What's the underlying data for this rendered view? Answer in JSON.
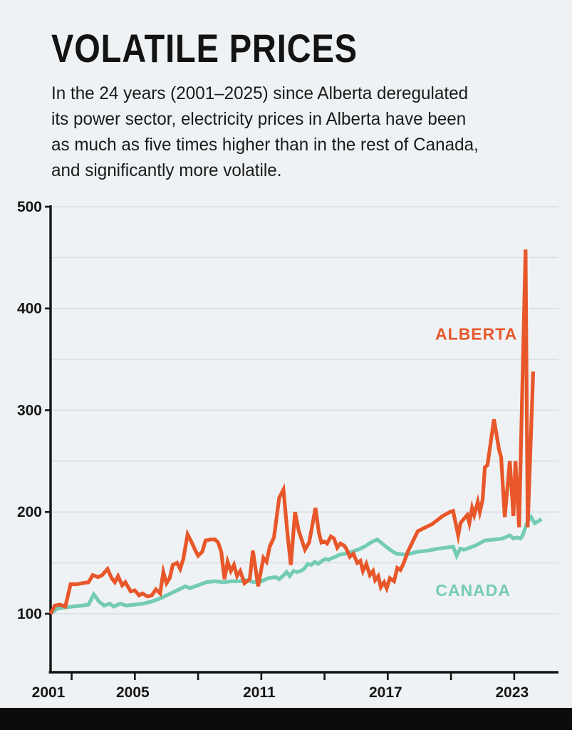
{
  "header": {
    "title": "VOLATILE PRICES",
    "subtitle_lines": [
      "In the 24 years (2001–2025) since Alberta deregulated",
      "its power sector, electricity prices in Alberta have been",
      "as much as five times higher than in the rest of Canada,",
      "and significantly more volatile."
    ]
  },
  "colors": {
    "background": "#EFF2F4",
    "alberta": "#E8572A",
    "canada": "#74CBB6",
    "gridline": "#D8DCDF",
    "axis": "#141414",
    "tick_label": "#161616",
    "footer_bar": "#0C0C0C"
  },
  "chart_data": {
    "type": "line",
    "title": "VOLATILE PRICES",
    "subtitle": "In the 24 years (2001–2025) since Alberta deregulated its power sector, electricity prices in Alberta have been as much as five times higher than in the rest of Canada, and significantly more volatile.",
    "grid": true,
    "legend_position": "inline-labels",
    "x_axis": {
      "min": 2001,
      "max": 2025.1,
      "tick_years": [
        2002,
        2005,
        2008,
        2011,
        2014,
        2017,
        2020,
        2023
      ],
      "label_years": [
        2001,
        2005,
        2011,
        2017,
        2023
      ],
      "labels": [
        "2001",
        "2005",
        "2011",
        "2017",
        "2023"
      ]
    },
    "y_axis": {
      "min": 42.5,
      "max": 500,
      "gridlines": [
        100,
        150,
        200,
        250,
        300,
        350,
        400,
        450,
        500
      ],
      "labeled_ticks": [
        100,
        200,
        300,
        400,
        500
      ],
      "labels": [
        "100",
        "200",
        "300",
        "400",
        "500"
      ]
    },
    "series": [
      {
        "name": "CANADA",
        "color": "#74CBB6",
        "label": {
          "text": "CANADA",
          "x": 2021.05,
          "y": 123
        },
        "points": [
          [
            2001.0,
            100
          ],
          [
            2001.3,
            105
          ],
          [
            2001.6,
            106
          ],
          [
            2002.0,
            107
          ],
          [
            2002.5,
            108
          ],
          [
            2002.8,
            109
          ],
          [
            2003.05,
            119
          ],
          [
            2003.3,
            112
          ],
          [
            2003.55,
            108
          ],
          [
            2003.8,
            110
          ],
          [
            2004.0,
            107
          ],
          [
            2004.3,
            110
          ],
          [
            2004.6,
            108
          ],
          [
            2005.0,
            109
          ],
          [
            2005.4,
            110
          ],
          [
            2005.8,
            112
          ],
          [
            2006.2,
            115
          ],
          [
            2006.6,
            119
          ],
          [
            2007.0,
            123
          ],
          [
            2007.4,
            127
          ],
          [
            2007.6,
            125
          ],
          [
            2008.0,
            128
          ],
          [
            2008.4,
            131
          ],
          [
            2008.8,
            132
          ],
          [
            2009.2,
            131
          ],
          [
            2009.6,
            132
          ],
          [
            2010.0,
            132
          ],
          [
            2010.3,
            133
          ],
          [
            2010.63,
            131
          ],
          [
            2011.0,
            132
          ],
          [
            2011.34,
            135
          ],
          [
            2011.68,
            136
          ],
          [
            2011.85,
            134
          ],
          [
            2012.02,
            137
          ],
          [
            2012.2,
            141
          ],
          [
            2012.35,
            137
          ],
          [
            2012.53,
            142
          ],
          [
            2012.7,
            141
          ],
          [
            2012.87,
            142
          ],
          [
            2013.03,
            144
          ],
          [
            2013.2,
            149
          ],
          [
            2013.37,
            148
          ],
          [
            2013.54,
            151
          ],
          [
            2013.7,
            149
          ],
          [
            2013.88,
            152
          ],
          [
            2014.05,
            154
          ],
          [
            2014.2,
            153
          ],
          [
            2014.37,
            155
          ],
          [
            2014.54,
            156
          ],
          [
            2014.7,
            158
          ],
          [
            2015.0,
            159
          ],
          [
            2015.3,
            161
          ],
          [
            2015.6,
            163
          ],
          [
            2015.9,
            166
          ],
          [
            2016.2,
            170
          ],
          [
            2016.5,
            173
          ],
          [
            2016.8,
            168
          ],
          [
            2017.1,
            163
          ],
          [
            2017.4,
            159
          ],
          [
            2017.9,
            158
          ],
          [
            2018.4,
            161
          ],
          [
            2018.9,
            162
          ],
          [
            2019.4,
            164
          ],
          [
            2019.75,
            165
          ],
          [
            2020.1,
            166
          ],
          [
            2020.27,
            157
          ],
          [
            2020.44,
            164
          ],
          [
            2020.6,
            163
          ],
          [
            2020.77,
            164
          ],
          [
            2021.16,
            167
          ],
          [
            2021.61,
            172
          ],
          [
            2022.12,
            173
          ],
          [
            2022.46,
            174
          ],
          [
            2022.79,
            177
          ],
          [
            2022.96,
            174
          ],
          [
            2023.13,
            175
          ],
          [
            2023.3,
            174
          ],
          [
            2023.4,
            177
          ],
          [
            2023.64,
            191
          ],
          [
            2023.8,
            195
          ],
          [
            2023.97,
            189
          ],
          [
            2024.15,
            191
          ],
          [
            2024.3,
            193
          ]
        ]
      },
      {
        "name": "ALBERTA",
        "color": "#E8572A",
        "label": {
          "text": "ALBERTA",
          "x": 2021.2,
          "y": 375
        },
        "points": [
          [
            2001.0,
            100
          ],
          [
            2001.2,
            108
          ],
          [
            2001.45,
            109
          ],
          [
            2001.7,
            107
          ],
          [
            2001.95,
            129
          ],
          [
            2002.25,
            129
          ],
          [
            2002.5,
            130
          ],
          [
            2002.8,
            131
          ],
          [
            2003.0,
            138
          ],
          [
            2003.25,
            136
          ],
          [
            2003.45,
            138
          ],
          [
            2003.7,
            144
          ],
          [
            2003.9,
            135
          ],
          [
            2004.05,
            131
          ],
          [
            2004.2,
            137
          ],
          [
            2004.4,
            128
          ],
          [
            2004.55,
            131
          ],
          [
            2004.8,
            122
          ],
          [
            2005.0,
            123
          ],
          [
            2005.2,
            118
          ],
          [
            2005.35,
            120
          ],
          [
            2005.6,
            117
          ],
          [
            2005.8,
            118
          ],
          [
            2006.0,
            124
          ],
          [
            2006.2,
            120
          ],
          [
            2006.35,
            141
          ],
          [
            2006.5,
            130
          ],
          [
            2006.65,
            135
          ],
          [
            2006.8,
            148
          ],
          [
            2007.0,
            150
          ],
          [
            2007.15,
            144
          ],
          [
            2007.3,
            154
          ],
          [
            2007.5,
            178
          ],
          [
            2007.7,
            170
          ],
          [
            2007.85,
            163
          ],
          [
            2008.0,
            157
          ],
          [
            2008.2,
            161
          ],
          [
            2008.35,
            172
          ],
          [
            2008.6,
            173
          ],
          [
            2008.8,
            173
          ],
          [
            2008.95,
            170
          ],
          [
            2009.1,
            161
          ],
          [
            2009.25,
            134
          ],
          [
            2009.4,
            151
          ],
          [
            2009.55,
            142
          ],
          [
            2009.7,
            148
          ],
          [
            2009.85,
            137
          ],
          [
            2010.0,
            142
          ],
          [
            2010.2,
            130
          ],
          [
            2010.45,
            134
          ],
          [
            2010.6,
            162
          ],
          [
            2010.85,
            127
          ],
          [
            2011.1,
            155
          ],
          [
            2011.25,
            151
          ],
          [
            2011.4,
            166
          ],
          [
            2011.6,
            175
          ],
          [
            2011.85,
            214
          ],
          [
            2012.05,
            222
          ],
          [
            2012.25,
            177
          ],
          [
            2012.4,
            148
          ],
          [
            2012.6,
            200
          ],
          [
            2012.77,
            182
          ],
          [
            2013.07,
            163
          ],
          [
            2013.27,
            170
          ],
          [
            2013.57,
            204
          ],
          [
            2013.73,
            180
          ],
          [
            2013.85,
            170
          ],
          [
            2014.0,
            171
          ],
          [
            2014.12,
            169
          ],
          [
            2014.3,
            176
          ],
          [
            2014.45,
            174
          ],
          [
            2014.6,
            165
          ],
          [
            2014.75,
            169
          ],
          [
            2014.93,
            167
          ],
          [
            2015.03,
            164
          ],
          [
            2015.2,
            156
          ],
          [
            2015.37,
            159
          ],
          [
            2015.55,
            150
          ],
          [
            2015.7,
            152
          ],
          [
            2015.82,
            142
          ],
          [
            2015.98,
            149
          ],
          [
            2016.15,
            138
          ],
          [
            2016.3,
            142
          ],
          [
            2016.4,
            133
          ],
          [
            2016.55,
            137
          ],
          [
            2016.67,
            126
          ],
          [
            2016.83,
            131
          ],
          [
            2016.95,
            125
          ],
          [
            2017.1,
            135
          ],
          [
            2017.3,
            132
          ],
          [
            2017.45,
            145
          ],
          [
            2017.6,
            143
          ],
          [
            2017.74,
            149
          ],
          [
            2017.95,
            161
          ],
          [
            2018.42,
            181
          ],
          [
            2018.7,
            184
          ],
          [
            2019.1,
            188
          ],
          [
            2019.6,
            196
          ],
          [
            2019.95,
            200
          ],
          [
            2020.1,
            201
          ],
          [
            2020.34,
            177
          ],
          [
            2020.45,
            189
          ],
          [
            2020.6,
            193
          ],
          [
            2020.77,
            197
          ],
          [
            2020.87,
            189
          ],
          [
            2021.0,
            204
          ],
          [
            2021.1,
            197
          ],
          [
            2021.27,
            210
          ],
          [
            2021.37,
            200
          ],
          [
            2021.5,
            212
          ],
          [
            2021.61,
            244
          ],
          [
            2021.73,
            246
          ],
          [
            2022.04,
            291
          ],
          [
            2022.28,
            261
          ],
          [
            2022.38,
            254
          ],
          [
            2022.55,
            195
          ],
          [
            2022.79,
            250
          ],
          [
            2022.96,
            196
          ],
          [
            2023.06,
            250
          ],
          [
            2023.23,
            185
          ],
          [
            2023.54,
            458
          ],
          [
            2023.64,
            185
          ],
          [
            2023.9,
            338
          ]
        ]
      }
    ]
  }
}
